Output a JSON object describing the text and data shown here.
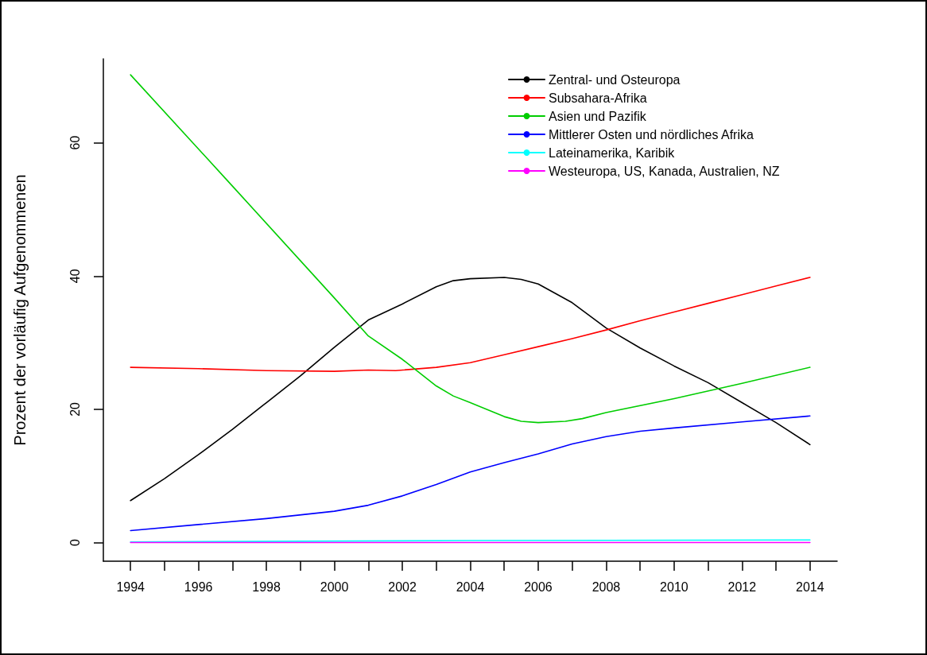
{
  "chart_data": {
    "type": "line",
    "ylabel": "Prozent der vorläufig Aufgenommenen",
    "xlim": [
      1993.2,
      2014.8
    ],
    "ylim": [
      -2.8,
      72.6
    ],
    "xticks": [
      1994,
      {
        "value": 1995,
        "label": null
      },
      1996,
      {
        "value": 1997,
        "label": null
      },
      1998,
      {
        "value": 1999,
        "label": null
      },
      2000,
      {
        "value": 2001,
        "label": null
      },
      2002,
      {
        "value": 2003,
        "label": null
      },
      2004,
      {
        "value": 2005,
        "label": null
      },
      2006,
      {
        "value": 2007,
        "label": null
      },
      2008,
      {
        "value": 2009,
        "label": null
      },
      2010,
      {
        "value": 2011,
        "label": null
      },
      2012,
      {
        "value": 2013,
        "label": null
      },
      2014
    ],
    "yticks": [
      0,
      20,
      40,
      60
    ],
    "grid": false,
    "legend": "top right",
    "marker": "none",
    "line_style": "solid",
    "series": [
      {
        "name": "Zentral- und Osteuropa",
        "color": "#000000",
        "x": [
          1994,
          1995,
          1996,
          1997,
          1998,
          1999,
          2000,
          2001,
          2002,
          2003,
          2003.5,
          2004,
          2005,
          2005.5,
          2006,
          2007,
          2008,
          2009,
          2010,
          2011,
          2012,
          2013,
          2014
        ],
        "values": [
          6.3,
          9.6,
          13.2,
          17,
          21,
          25,
          29.3,
          33.4,
          35.8,
          38.4,
          39.3,
          39.6,
          39.8,
          39.5,
          38.8,
          36,
          32.2,
          29.2,
          26.5,
          24,
          21,
          18,
          14.7
        ]
      },
      {
        "name": "Subsahara-Afrika",
        "color": "#ff0000",
        "x": [
          1994,
          1996,
          1998,
          2000,
          2001,
          2001.8,
          2003,
          2004,
          2005,
          2006,
          2007,
          2008,
          2009,
          2010,
          2011,
          2012,
          2013,
          2014
        ],
        "values": [
          26.3,
          26.1,
          25.8,
          25.7,
          25.9,
          25.8,
          26.3,
          27,
          28.2,
          29.4,
          30.6,
          31.9,
          33.3,
          34.6,
          35.9,
          37.2,
          38.5,
          39.8
        ]
      },
      {
        "name": "Asien und Pazifik",
        "color": "#00cd00",
        "x": [
          1994,
          1997,
          2000,
          2001,
          2002,
          2003,
          2003.5,
          2004,
          2005,
          2005.5,
          2006,
          2006.8,
          2007.3,
          2008,
          2010,
          2012,
          2014
        ],
        "values": [
          70.2,
          53.5,
          36.7,
          31,
          27.5,
          23.5,
          22,
          21,
          18.9,
          18.2,
          18,
          18.2,
          18.6,
          19.5,
          21.6,
          23.9,
          26.3
        ]
      },
      {
        "name": "Mittlerer Osten und nördliches Afrika",
        "color": "#0000ff",
        "x": [
          1994,
          1996,
          1998,
          2000,
          2001,
          2002,
          2003,
          2004,
          2005,
          2006,
          2007,
          2008,
          2009,
          2010,
          2012,
          2014
        ],
        "values": [
          1.8,
          2.7,
          3.6,
          4.7,
          5.6,
          7,
          8.7,
          10.6,
          12,
          13.3,
          14.8,
          15.9,
          16.7,
          17.2,
          18.1,
          19
        ]
      },
      {
        "name": "Lateinamerika, Karibik",
        "color": "#00ffff",
        "x": [
          1994,
          2004,
          2014
        ],
        "values": [
          0.1,
          0.3,
          0.4
        ]
      },
      {
        "name": "Westeuropa, US, Kanada, Australien, NZ",
        "color": "#ff00ff",
        "x": [
          1994,
          2004,
          2014
        ],
        "values": [
          0,
          0,
          0
        ]
      }
    ]
  }
}
